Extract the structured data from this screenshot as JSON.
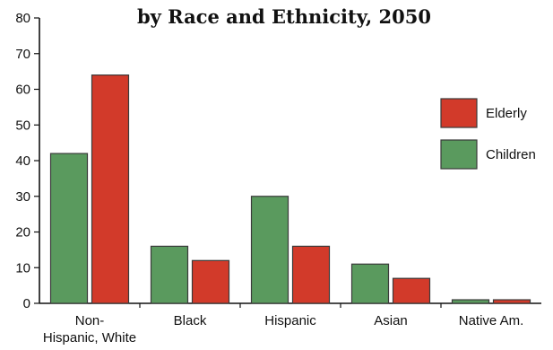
{
  "chart_data": {
    "type": "bar",
    "title": "by Race and Ethnicity, 2050",
    "categories": [
      "Non-\nHispanic, White",
      "Black",
      "Hispanic",
      "Asian",
      "Native Am."
    ],
    "series": [
      {
        "name": "Children",
        "values": [
          42,
          16,
          30,
          11,
          1
        ],
        "color": "#5a9a5e"
      },
      {
        "name": "Elderly",
        "values": [
          64,
          12,
          16,
          7,
          1
        ],
        "color": "#d23a2a"
      }
    ],
    "ylim": [
      0,
      80
    ],
    "yticks": [
      0,
      10,
      20,
      30,
      40,
      50,
      60,
      70,
      80
    ],
    "legend": {
      "position": "right",
      "order": [
        "Elderly",
        "Children"
      ]
    },
    "grid": false
  }
}
